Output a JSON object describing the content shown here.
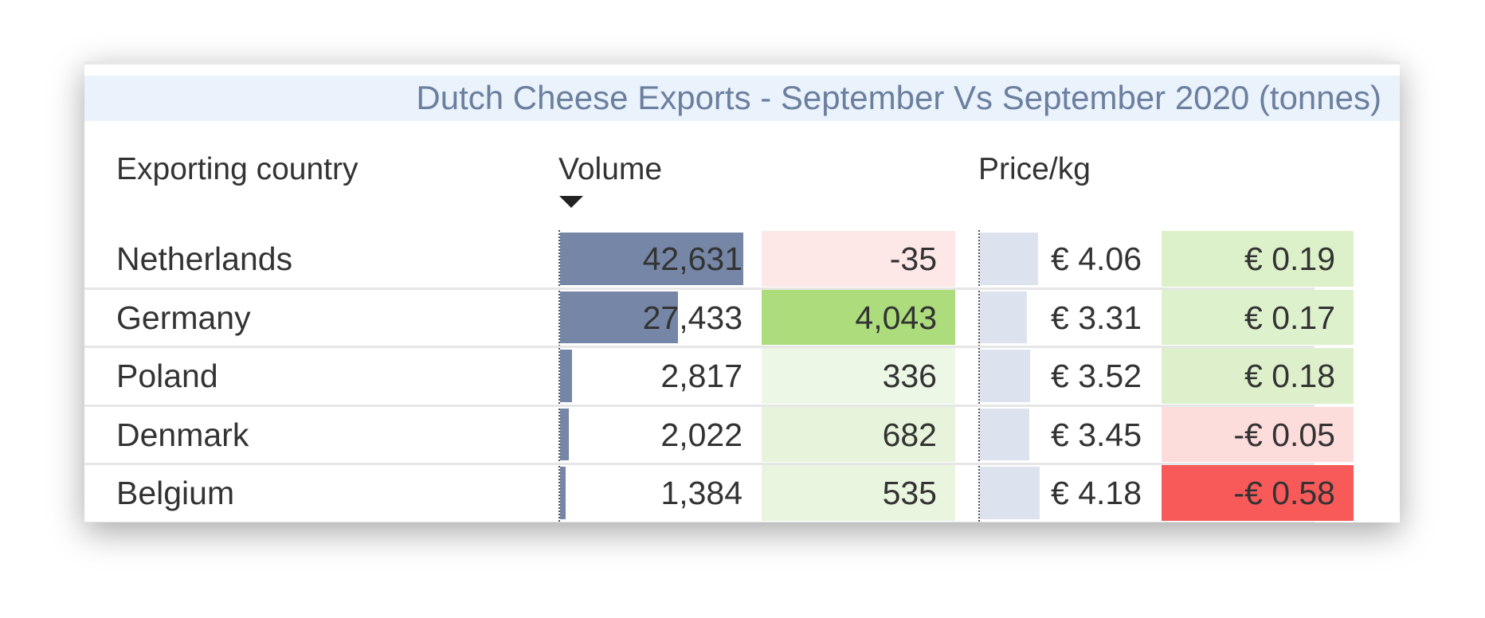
{
  "title": "Dutch Cheese Exports - September Vs September 2020 (tonnes)",
  "table": {
    "headers": [
      "Exporting country",
      "Volume",
      "Price/kg"
    ],
    "rows": [
      [
        "Netherlands",
        {
          "value": 42631,
          "label": "42,631"
        },
        -35,
        {
          "value": 4.06,
          "label": "€ 4.06"
        },
        {
          "value": 0.19,
          "label": "€ 0.19"
        }
      ],
      [
        "Germany",
        {
          "value": 27433,
          "label": "27,433"
        },
        {
          "value": 4043,
          "label": "4,043"
        },
        {
          "value": 3.31,
          "label": "€ 3.31"
        },
        {
          "value": 0.17,
          "label": "€ 0.17"
        }
      ],
      [
        "Poland",
        {
          "value": 2817,
          "label": "2,817"
        },
        336,
        {
          "value": 3.52,
          "label": "€ 3.52"
        },
        {
          "value": 0.18,
          "label": "€ 0.18"
        }
      ],
      [
        "Denmark",
        {
          "value": 2022,
          "label": "2,022"
        },
        682,
        {
          "value": 3.45,
          "label": "€ 3.45"
        },
        {
          "value": -0.05,
          "label": "-€ 0.05"
        }
      ],
      [
        "Belgium",
        {
          "value": 1384,
          "label": "1,384"
        },
        535,
        {
          "value": 4.18,
          "label": "€ 4.18"
        },
        {
          "value": -0.58,
          "label": "-€ 0.58"
        }
      ]
    ]
  }
}
